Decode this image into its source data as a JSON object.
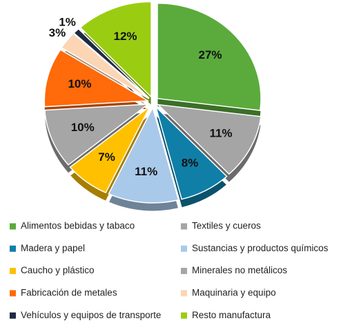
{
  "chart_data": {
    "type": "pie",
    "categories": [
      "Alimentos bebidas y tabaco",
      "Textiles y cueros",
      "Madera y papel",
      "Sustancias y productos químicos",
      "Caucho y plástico",
      "Minerales no metálicos",
      "Fabricación de metales",
      "Maquinaria y equipo",
      "Vehículos y equipos de transporte",
      "Resto manufactura"
    ],
    "values": [
      27,
      11,
      8,
      11,
      7,
      10,
      10,
      3,
      1,
      12
    ],
    "value_labels": [
      "27%",
      "11%",
      "8%",
      "11%",
      "7%",
      "10%",
      "10%",
      "3%",
      "1%",
      "12%"
    ],
    "colors": [
      "#5aab3c",
      "#a5a5a5",
      "#0f7fa8",
      "#a9c9ea",
      "#ffc000",
      "#a6a6a6",
      "#ff6a0a",
      "#fcd5b4",
      "#1f2a44",
      "#9acd12"
    ],
    "legend": "bottom"
  }
}
